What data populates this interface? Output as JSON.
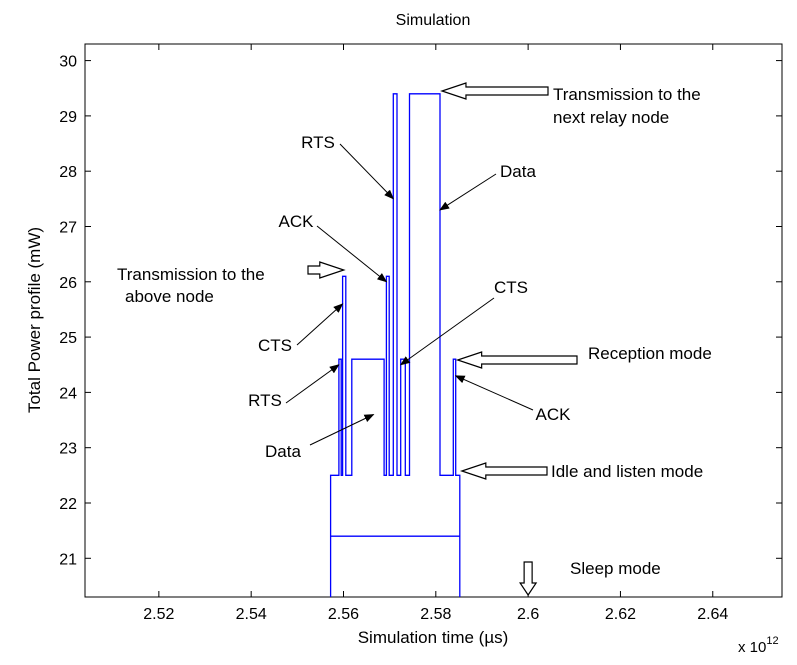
{
  "chart_data": {
    "type": "line",
    "title": "Simulation",
    "xlabel": "Simulation time (µs)",
    "ylabel": "Total Power profile (mW)",
    "x_exponent_label": "x 10",
    "x_exponent_power": "12",
    "xlim": [
      2.504,
      2.655
    ],
    "ylim": [
      20.3,
      30.3
    ],
    "xticks": [
      "2.52",
      "2.54",
      "2.56",
      "2.58",
      "2.6",
      "2.62",
      "2.64"
    ],
    "xtick_values": [
      2.52,
      2.54,
      2.56,
      2.58,
      2.6,
      2.62,
      2.64
    ],
    "yticks": [
      "21",
      "22",
      "23",
      "24",
      "25",
      "26",
      "27",
      "28",
      "29",
      "30"
    ],
    "ytick_values": [
      21,
      22,
      23,
      24,
      25,
      26,
      27,
      28,
      29,
      30
    ],
    "grid": false,
    "line_color": "#0000ff",
    "series": [
      {
        "points": [
          [
            2.5572,
            20.3
          ],
          [
            2.5572,
            22.5
          ],
          [
            2.559,
            22.5
          ],
          [
            2.559,
            24.6
          ],
          [
            2.5595,
            24.6
          ],
          [
            2.5595,
            22.5
          ],
          [
            2.5598,
            22.5
          ],
          [
            2.5598,
            26.1
          ],
          [
            2.5605,
            26.1
          ],
          [
            2.5605,
            22.5
          ],
          [
            2.5618,
            22.5
          ],
          [
            2.5618,
            24.6
          ],
          [
            2.5688,
            24.6
          ],
          [
            2.5688,
            22.5
          ],
          [
            2.5693,
            22.5
          ],
          [
            2.5693,
            26.1
          ],
          [
            2.5699,
            26.1
          ],
          [
            2.5699,
            22.5
          ],
          [
            2.5708,
            22.5
          ],
          [
            2.5708,
            29.4
          ],
          [
            2.5716,
            29.4
          ],
          [
            2.5716,
            22.5
          ],
          [
            2.5724,
            22.5
          ],
          [
            2.5724,
            24.6
          ],
          [
            2.5734,
            24.6
          ],
          [
            2.5734,
            22.5
          ],
          [
            2.5743,
            22.5
          ],
          [
            2.5743,
            29.4
          ],
          [
            2.5809,
            29.4
          ],
          [
            2.5809,
            22.5
          ],
          [
            2.5838,
            22.5
          ],
          [
            2.5838,
            24.6
          ],
          [
            2.5843,
            24.6
          ],
          [
            2.5843,
            22.5
          ],
          [
            2.5852,
            22.5
          ],
          [
            2.5852,
            20.3
          ]
        ]
      },
      {
        "points": [
          [
            2.5572,
            21.4
          ],
          [
            2.5852,
            21.4
          ]
        ]
      }
    ],
    "annotations": [
      {
        "lines": [
          "Transmission to the",
          "next relay node"
        ],
        "target": [
          2.5809,
          29.4
        ]
      },
      {
        "lines": [
          "RTS"
        ],
        "target": [
          2.5708,
          27.5
        ]
      },
      {
        "lines": [
          "Data"
        ],
        "target": [
          2.5809,
          27.3
        ]
      },
      {
        "lines": [
          "ACK"
        ],
        "target": [
          2.5693,
          26.0
        ]
      },
      {
        "lines": [
          "Transmission to the",
          "above node"
        ],
        "target": [
          2.5605,
          26.1
        ]
      },
      {
        "lines": [
          "CTS"
        ],
        "target": [
          2.5724,
          24.5
        ]
      },
      {
        "lines": [
          "CTS"
        ],
        "target": [
          2.5598,
          25.6
        ]
      },
      {
        "lines": [
          "Reception mode"
        ],
        "target": [
          2.5843,
          24.6
        ]
      },
      {
        "lines": [
          "RTS"
        ],
        "target": [
          2.559,
          24.5
        ]
      },
      {
        "lines": [
          "ACK"
        ],
        "target": [
          2.5843,
          24.3
        ]
      },
      {
        "lines": [
          "Data"
        ],
        "target": [
          2.5665,
          23.6
        ]
      },
      {
        "lines": [
          "Idle and listen mode"
        ],
        "target": [
          2.5852,
          22.5
        ]
      },
      {
        "lines": [
          "Sleep mode"
        ],
        "target": [
          2.6,
          20.3
        ]
      }
    ]
  }
}
